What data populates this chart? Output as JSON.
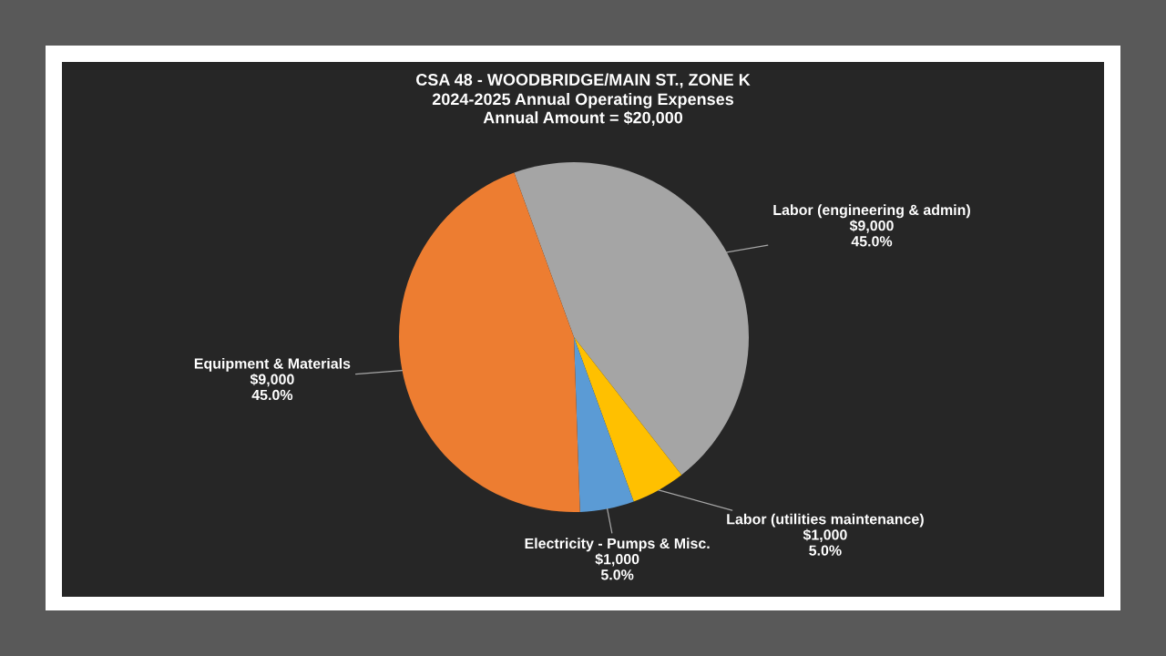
{
  "chart_data": {
    "type": "pie",
    "title": "CSA 48 - WOODBRIDGE/MAIN ST., ZONE K",
    "subtitle": "2024-2025 Annual Operating Expenses\nAnnual Amount = $20,000",
    "categories": [
      "Labor (engineering & admin)",
      "Labor (utilities maintenance)",
      "Electricity - Pumps & Misc.",
      "Equipment & Materials"
    ],
    "values": [
      9000,
      1000,
      1000,
      9000
    ],
    "colors": [
      "#a5a5a5",
      "#ffc000",
      "#5b9bd5",
      "#ed7d31"
    ],
    "value_labels": [
      "$9,000\n45.0%",
      "$1,000\n5.0%",
      "$1,000\n5.0%",
      "$9,000\n45.0%"
    ]
  }
}
